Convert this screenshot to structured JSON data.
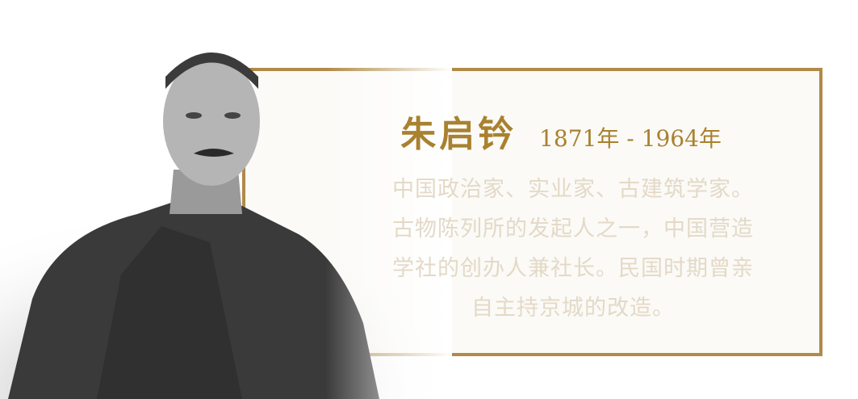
{
  "card": {
    "name": "朱启钤",
    "years": "1871年 - 1964年",
    "description_lines": [
      "中国政治家、实业家、古建筑学家。",
      "古物陈列所的发起人之一，中国营造",
      "学社的创办人兼社长。民国时期曾亲",
      "自主持京城的改造。"
    ]
  },
  "colors": {
    "frame_border": "#b08a47",
    "title_gold": "#a9812f",
    "description_text": "#e4d9c7"
  }
}
